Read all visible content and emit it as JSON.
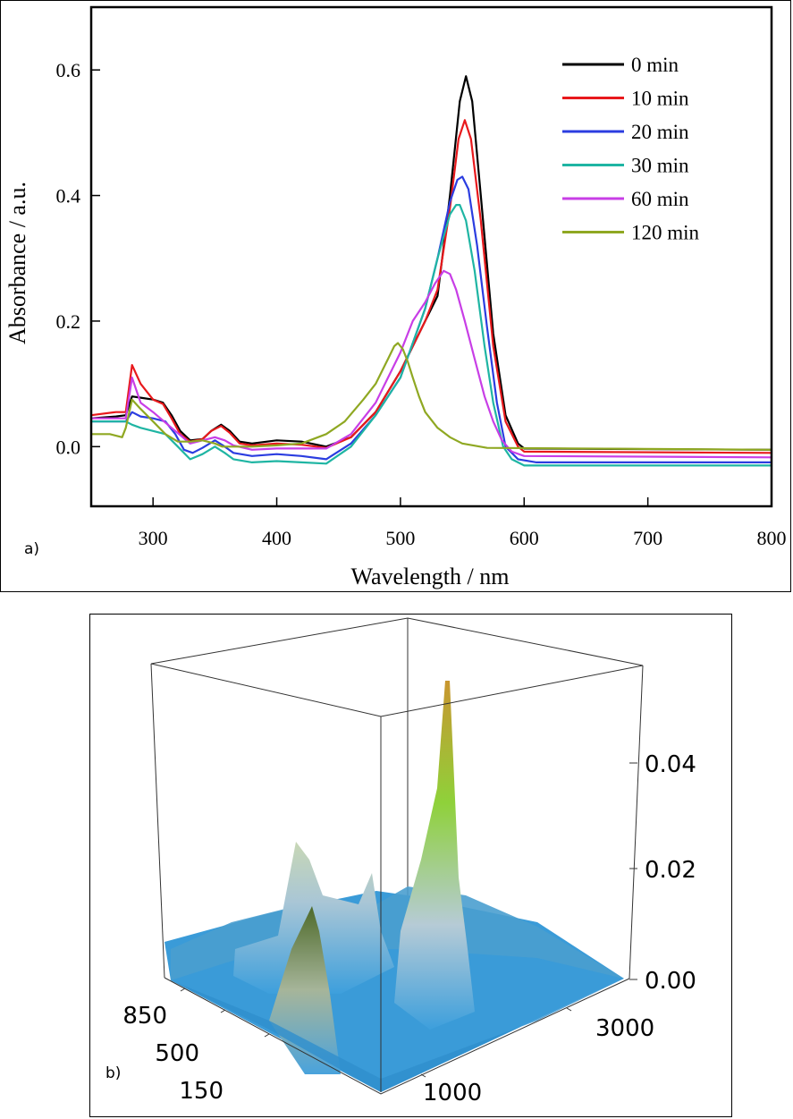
{
  "chart_data": [
    {
      "panel_label": "a)",
      "type": "line",
      "xlabel": "Wavelength / nm",
      "ylabel": "Absorbance / a.u.",
      "xlim": [
        250,
        800
      ],
      "ylim": [
        -0.095,
        0.7
      ],
      "xticks": [
        300,
        400,
        500,
        600,
        700,
        800
      ],
      "yticks": [
        0.0,
        0.2,
        0.4,
        0.6
      ],
      "ytick_labels": [
        "0.0",
        "0.2",
        "0.4",
        "0.6"
      ],
      "grid": false,
      "legend_position": "top-right",
      "series": [
        {
          "name": "0  min",
          "color": "#000000",
          "x": [
            250,
            270,
            278,
            283,
            290,
            300,
            308,
            315,
            322,
            330,
            340,
            347,
            355,
            362,
            370,
            380,
            400,
            420,
            440,
            460,
            480,
            500,
            520,
            530,
            540,
            548,
            553,
            558,
            565,
            575,
            585,
            595,
            600,
            800
          ],
          "y": [
            0.045,
            0.048,
            0.05,
            0.08,
            0.078,
            0.075,
            0.07,
            0.05,
            0.025,
            0.01,
            0.012,
            0.025,
            0.035,
            0.025,
            0.008,
            0.005,
            0.01,
            0.008,
            0.0,
            0.015,
            0.055,
            0.12,
            0.2,
            0.24,
            0.4,
            0.55,
            0.59,
            0.55,
            0.4,
            0.18,
            0.05,
            0.005,
            -0.003,
            -0.005
          ]
        },
        {
          "name": "10 min",
          "color": "#e8191c",
          "x": [
            250,
            270,
            278,
            283,
            290,
            300,
            308,
            315,
            322,
            330,
            340,
            347,
            355,
            362,
            370,
            380,
            400,
            420,
            440,
            460,
            480,
            500,
            520,
            530,
            540,
            547,
            552,
            557,
            565,
            575,
            585,
            595,
            600,
            800
          ],
          "y": [
            0.05,
            0.055,
            0.055,
            0.13,
            0.1,
            0.075,
            0.068,
            0.045,
            0.02,
            0.008,
            0.012,
            0.025,
            0.033,
            0.022,
            0.005,
            0.002,
            0.005,
            0.003,
            -0.002,
            0.015,
            0.055,
            0.12,
            0.2,
            0.25,
            0.38,
            0.49,
            0.52,
            0.49,
            0.36,
            0.16,
            0.04,
            0.0,
            -0.008,
            -0.01
          ]
        },
        {
          "name": "20 min",
          "color": "#2b3de0",
          "x": [
            250,
            270,
            278,
            283,
            290,
            300,
            310,
            318,
            325,
            332,
            340,
            350,
            358,
            365,
            380,
            400,
            420,
            440,
            460,
            480,
            500,
            520,
            530,
            540,
            546,
            550,
            555,
            562,
            570,
            578,
            585,
            595,
            610,
            800
          ],
          "y": [
            0.04,
            0.04,
            0.04,
            0.055,
            0.048,
            0.045,
            0.04,
            0.02,
            -0.005,
            -0.01,
            -0.002,
            0.01,
            0.0,
            -0.01,
            -0.015,
            -0.012,
            -0.015,
            -0.02,
            0.005,
            0.05,
            0.11,
            0.22,
            0.3,
            0.39,
            0.425,
            0.43,
            0.41,
            0.32,
            0.19,
            0.07,
            0.0,
            -0.02,
            -0.025,
            -0.025
          ]
        },
        {
          "name": "30 min",
          "color": "#1fb5a3",
          "x": [
            250,
            270,
            278,
            283,
            290,
            300,
            310,
            320,
            330,
            340,
            350,
            358,
            365,
            380,
            400,
            420,
            440,
            460,
            480,
            500,
            520,
            530,
            540,
            545,
            548,
            553,
            560,
            568,
            575,
            583,
            590,
            600,
            800
          ],
          "y": [
            0.04,
            0.04,
            0.04,
            0.035,
            0.03,
            0.025,
            0.02,
            0.0,
            -0.02,
            -0.012,
            0.0,
            -0.01,
            -0.02,
            -0.025,
            -0.023,
            -0.025,
            -0.027,
            0.0,
            0.05,
            0.11,
            0.22,
            0.3,
            0.37,
            0.385,
            0.385,
            0.36,
            0.28,
            0.16,
            0.07,
            0.0,
            -0.02,
            -0.03,
            -0.03
          ]
        },
        {
          "name": "60 min",
          "color": "#c83ee6",
          "x": [
            250,
            270,
            278,
            283,
            290,
            300,
            315,
            330,
            340,
            350,
            358,
            365,
            380,
            400,
            420,
            440,
            460,
            480,
            500,
            510,
            520,
            528,
            535,
            540,
            545,
            552,
            560,
            568,
            575,
            582,
            590,
            600,
            800
          ],
          "y": [
            0.045,
            0.045,
            0.045,
            0.11,
            0.07,
            0.055,
            0.03,
            0.005,
            0.01,
            0.015,
            0.01,
            0.002,
            -0.005,
            -0.003,
            -0.003,
            -0.003,
            0.02,
            0.07,
            0.15,
            0.2,
            0.23,
            0.26,
            0.28,
            0.275,
            0.25,
            0.2,
            0.14,
            0.08,
            0.04,
            0.01,
            -0.008,
            -0.015,
            -0.017
          ]
        },
        {
          "name": "120 min",
          "color": "#8fa822",
          "x": [
            250,
            265,
            275,
            278,
            283,
            290,
            300,
            310,
            320,
            330,
            340,
            350,
            356,
            365,
            380,
            400,
            420,
            440,
            455,
            470,
            480,
            490,
            495,
            498,
            502,
            506,
            510,
            515,
            520,
            530,
            540,
            550,
            570,
            800
          ],
          "y": [
            0.02,
            0.02,
            0.015,
            0.03,
            0.075,
            0.06,
            0.04,
            0.02,
            0.008,
            0.008,
            0.01,
            0.005,
            0.0,
            0.0,
            0.0,
            0.002,
            0.005,
            0.02,
            0.04,
            0.075,
            0.1,
            0.14,
            0.16,
            0.165,
            0.155,
            0.135,
            0.11,
            0.08,
            0.055,
            0.03,
            0.015,
            0.005,
            -0.002,
            -0.005
          ]
        }
      ]
    },
    {
      "panel_label": "b)",
      "type": "surface",
      "x_tick_labels": [
        "850",
        "500",
        "150"
      ],
      "y_tick_labels": [
        "1000",
        "3000"
      ],
      "z_tick_labels": [
        "0.00",
        "0.02",
        "0.04"
      ],
      "zlim": [
        0.0,
        0.06
      ],
      "colormap": [
        "#3a9bd8",
        "#a9c6d6",
        "#8fd13a",
        "#c8a24a"
      ]
    }
  ]
}
